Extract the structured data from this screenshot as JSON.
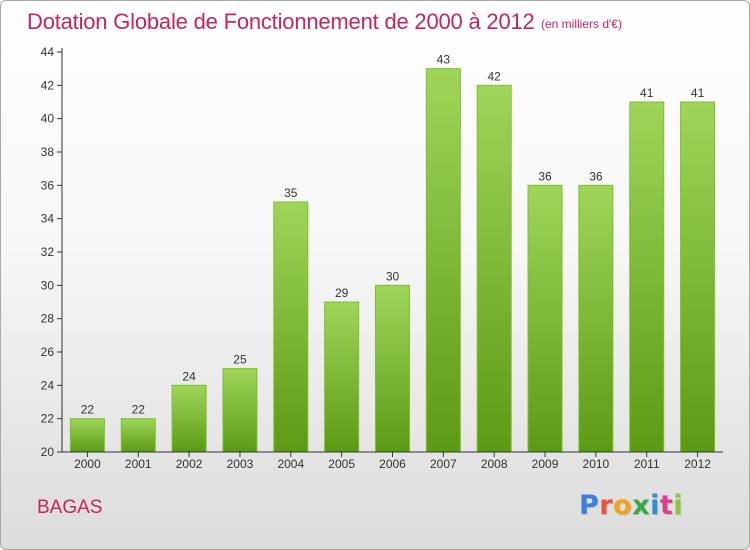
{
  "header": {
    "title": "Dotation Globale de Fonctionnement de 2000 à 2012",
    "subtitle": "(en milliers d'€)"
  },
  "footer": {
    "place": "BAGAS",
    "brand": "Proxiti",
    "brand_colors": [
      "#3b7fd9",
      "#e8563b",
      "#f2a21a",
      "#3aa845",
      "#2c8fd6",
      "#e03b8f",
      "#8cc63e"
    ]
  },
  "colors": {
    "accent": "#c8245a",
    "bar_top": "#9fd65a",
    "bar_bottom": "#5c9a14",
    "axis": "#333333"
  },
  "chart_data": {
    "type": "bar",
    "categories": [
      "2000",
      "2001",
      "2002",
      "2003",
      "2004",
      "2005",
      "2006",
      "2007",
      "2008",
      "2009",
      "2010",
      "2011",
      "2012"
    ],
    "values": [
      22,
      22,
      24,
      25,
      35,
      29,
      30,
      43,
      42,
      36,
      36,
      41,
      41
    ],
    "data_labels": [
      "22",
      "22",
      "24",
      "25",
      "35",
      "29",
      "30",
      "43",
      "42",
      "36",
      "36",
      "41",
      "41"
    ],
    "yticks": [
      "20",
      "22",
      "24",
      "26",
      "28",
      "30",
      "32",
      "34",
      "36",
      "38",
      "40",
      "42",
      "44"
    ],
    "ylim": [
      20,
      44
    ],
    "grid": false,
    "legend": "none"
  }
}
